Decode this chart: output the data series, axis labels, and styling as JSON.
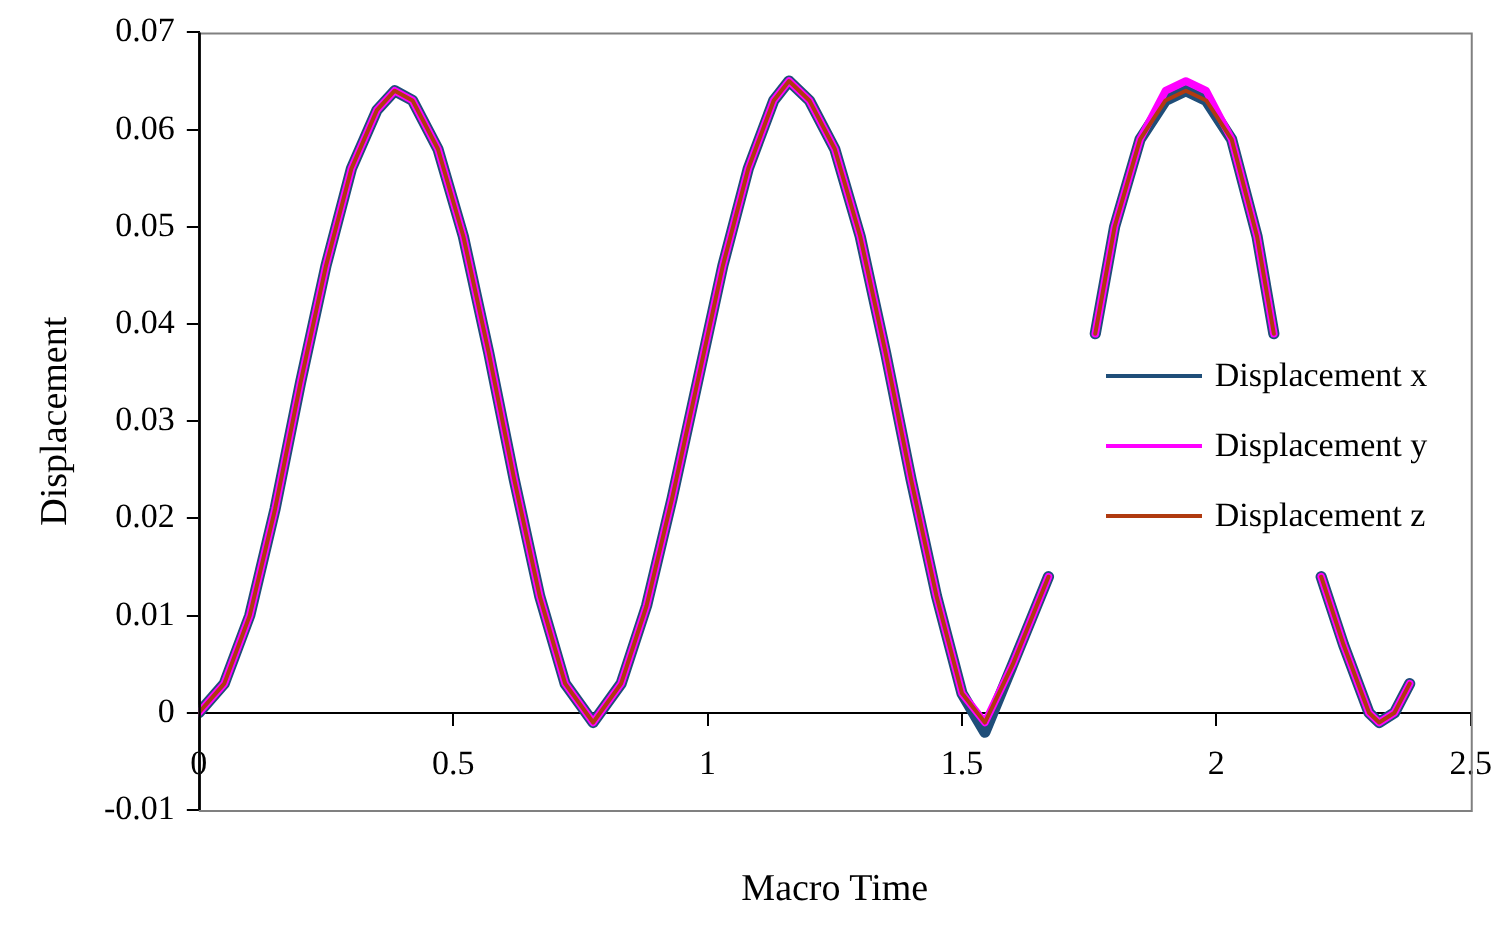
{
  "chart_data": {
    "type": "line",
    "xlabel": "Macro Time",
    "ylabel": "Displacement",
    "x": [
      0,
      0.05,
      0.1,
      0.15,
      0.2,
      0.25,
      0.3,
      0.35,
      0.385,
      0.42,
      0.47,
      0.52,
      0.57,
      0.62,
      0.67,
      0.72,
      0.775,
      0.83,
      0.88,
      0.93,
      0.98,
      1.03,
      1.08,
      1.13,
      1.16,
      1.2,
      1.25,
      1.3,
      1.35,
      1.4,
      1.45,
      1.5,
      1.545,
      1.6,
      1.67,
      1.715,
      1.762,
      1.8,
      1.85,
      1.9,
      1.94,
      1.98,
      2.03,
      2.08,
      2.113,
      2.16,
      2.206,
      2.25,
      2.3,
      2.32,
      2.35,
      2.38
    ],
    "series": [
      {
        "name": "Displacement x",
        "color": "#1f4e79",
        "values": [
          0,
          0.003,
          0.01,
          0.021,
          0.034,
          0.046,
          0.056,
          0.062,
          0.064,
          0.063,
          0.058,
          0.049,
          0.037,
          0.024,
          0.012,
          0.003,
          -0.001,
          0.003,
          0.011,
          0.022,
          0.034,
          0.046,
          0.056,
          0.063,
          0.065,
          0.063,
          0.058,
          0.049,
          0.037,
          0.024,
          0.012,
          0.002,
          -0.002,
          0.005,
          0.014,
          null,
          0.039,
          0.05,
          0.059,
          0.063,
          0.064,
          0.063,
          0.059,
          0.049,
          0.039,
          null,
          0.014,
          0.007,
          0,
          -0.001,
          0,
          0.003
        ]
      },
      {
        "name": "Displacement y",
        "color": "#ff00ff",
        "values": [
          0,
          0.003,
          0.01,
          0.021,
          0.034,
          0.046,
          0.056,
          0.062,
          0.064,
          0.063,
          0.058,
          0.049,
          0.037,
          0.024,
          0.012,
          0.003,
          -0.001,
          0.003,
          0.011,
          0.022,
          0.034,
          0.046,
          0.056,
          0.063,
          0.065,
          0.063,
          0.058,
          0.049,
          0.037,
          0.024,
          0.012,
          0.002,
          -0.001,
          0.005,
          0.014,
          null,
          0.039,
          0.05,
          0.059,
          0.064,
          0.065,
          0.064,
          0.059,
          0.049,
          0.039,
          null,
          0.014,
          0.007,
          0,
          -0.001,
          0,
          0.003
        ]
      },
      {
        "name": "Displacement z",
        "color": "#b03a10",
        "values": [
          0,
          0.003,
          0.01,
          0.021,
          0.034,
          0.046,
          0.056,
          0.062,
          0.064,
          0.063,
          0.058,
          0.049,
          0.037,
          0.024,
          0.012,
          0.003,
          -0.001,
          0.003,
          0.011,
          0.022,
          0.034,
          0.046,
          0.056,
          0.063,
          0.065,
          0.063,
          0.058,
          0.049,
          0.037,
          0.024,
          0.012,
          0.002,
          -0.001,
          0.005,
          0.014,
          null,
          0.039,
          0.05,
          0.059,
          0.063,
          0.064,
          0.063,
          0.059,
          0.049,
          0.039,
          null,
          0.014,
          0.007,
          0,
          -0.001,
          0,
          0.003
        ]
      }
    ],
    "xlim": [
      0,
      2.5
    ],
    "xticks": [
      0,
      0.5,
      1,
      1.5,
      2,
      2.5
    ],
    "ylim": [
      -0.01,
      0.07
    ],
    "yticks": [
      -0.01,
      0,
      0.01,
      0.02,
      0.03,
      0.04,
      0.05,
      0.06,
      0.07
    ],
    "grid": false,
    "legend": "right",
    "marker": "none",
    "line_style": "solid"
  }
}
